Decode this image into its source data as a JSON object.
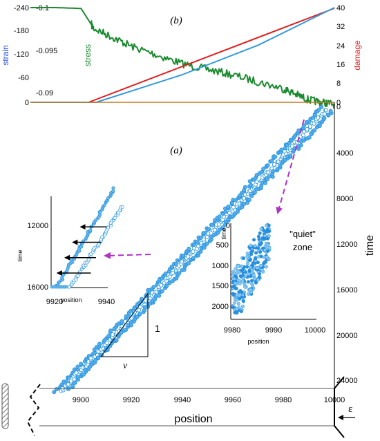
{
  "chart_data": [
    {
      "id": "b",
      "panel_label": "(b)",
      "type": "line",
      "x": {
        "label": "",
        "range": [
          9880,
          10000
        ],
        "direction": "reversed"
      },
      "axes": {
        "strain": {
          "label": "strain",
          "color": "#1f4fd8",
          "ticks": [
            "-240",
            "-180",
            "-120",
            "-60",
            "0"
          ],
          "range": [
            -240,
            0
          ]
        },
        "stress": {
          "label": "stress",
          "color": "#1a8a2e",
          "ticks": [
            "-0.1",
            "-0.095",
            "-0.09"
          ],
          "range": [
            -0.1,
            -0.088
          ]
        },
        "damage": {
          "label": "damage",
          "color": "#e02020",
          "ticks": [
            "40",
            "32",
            "24",
            "16",
            "8",
            "0"
          ],
          "range": [
            0,
            40
          ]
        }
      },
      "series": [
        {
          "axis": "stress",
          "color": "#1a8a2e",
          "x": [
            9880,
            9890,
            9900,
            9905,
            9920,
            9940,
            9960,
            9980,
            9990,
            10000
          ],
          "y": [
            -0.1,
            -0.1,
            -0.0999,
            -0.0976,
            -0.0955,
            -0.0935,
            -0.0922,
            -0.0906,
            -0.0893,
            -0.0888
          ]
        },
        {
          "axis": "damage",
          "color": "#e02020",
          "x": [
            9880,
            9903,
            10000
          ],
          "y": [
            0,
            0,
            39.7
          ]
        },
        {
          "axis": "strain",
          "color": "#3399dd",
          "x": [
            9880,
            9906,
            9940,
            9970,
            10000
          ],
          "y": [
            0,
            0,
            -70,
            -145,
            -240
          ]
        },
        {
          "axis": "strain",
          "color": "#c87a20",
          "x": [
            9880,
            10000
          ],
          "y": [
            0,
            0
          ]
        }
      ]
    },
    {
      "id": "a",
      "panel_label": "(a)",
      "type": "scatter",
      "xlabel": "position",
      "ylabel": "time",
      "x": {
        "ticks": [
          "9900",
          "9920",
          "9940",
          "9960",
          "9980",
          "10000"
        ],
        "range": [
          9880,
          10000
        ]
      },
      "y": {
        "ticks": [
          "0",
          "4000",
          "8000",
          "12000",
          "16000",
          "20000",
          "24000"
        ],
        "range": [
          0,
          24000
        ],
        "direction": "downward"
      },
      "color": "#1e90e0",
      "bands": [
        {
          "x": [
            9890,
            9995
          ],
          "y": [
            24800,
            0
          ]
        },
        {
          "x": [
            9892,
            9997
          ],
          "y": [
            24800,
            200
          ]
        },
        {
          "x": [
            9895,
            9999
          ],
          "y": [
            24600,
            400
          ]
        }
      ],
      "slope_triangle": {
        "vertical_label": "1",
        "horizontal_label": "v"
      },
      "insets": [
        {
          "id": "left",
          "xlabel": "position",
          "ylabel": "time",
          "x": {
            "ticks": [
              "9920",
              "9940"
            ],
            "range": [
              9915,
              9945
            ]
          },
          "y": {
            "ticks": [
              "12000",
              "16000"
            ],
            "range": [
              9500,
              16000
            ],
            "direction": "downward"
          },
          "arrows": [
            {
              "x": [
                9940,
                9930
              ],
              "y": 12100
            },
            {
              "x": [
                9938,
                9927
              ],
              "y": 13100
            },
            {
              "x": [
                9936,
                9924
              ],
              "y": 14100
            },
            {
              "x": [
                9934,
                9921
              ],
              "y": 15100
            }
          ]
        },
        {
          "id": "right",
          "xlabel": "position",
          "ylabel": "time",
          "x": {
            "ticks": [
              "9980",
              "9990",
              "10000"
            ],
            "range": [
              9980,
              10000
            ]
          },
          "y": {
            "ticks": [
              "0",
              "500",
              "1000",
              "1500",
              "2000"
            ],
            "range": [
              0,
              2250
            ],
            "direction": "downward"
          }
        }
      ],
      "annotation": {
        "line1": "\"quiet\"",
        "line2": "zone"
      },
      "bar_labels": {
        "position": "position",
        "epsilon": "ε"
      }
    }
  ]
}
